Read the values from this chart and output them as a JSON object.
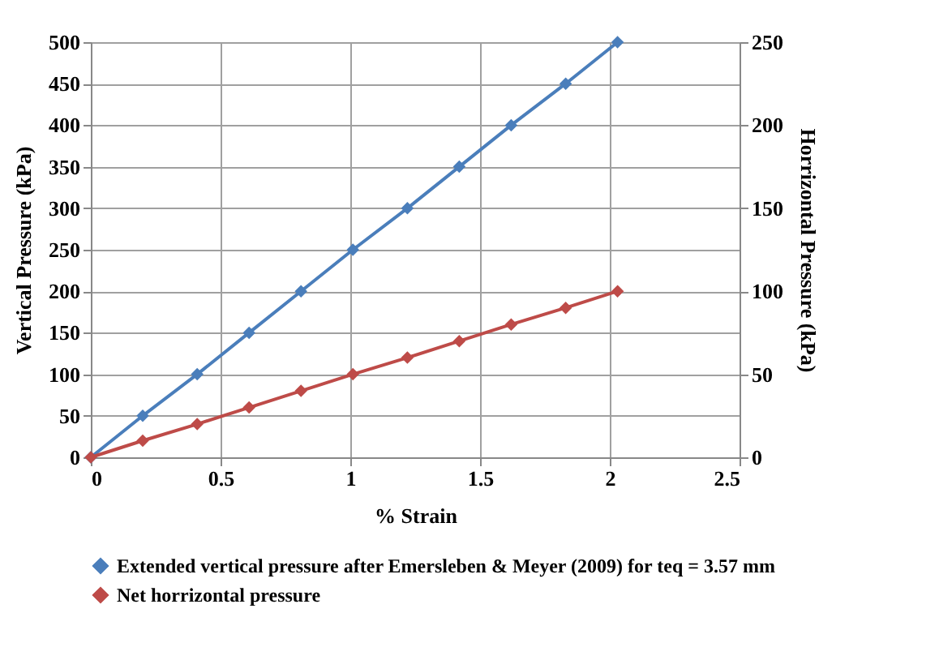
{
  "chart_data": {
    "type": "line",
    "xlabel": "% Strain",
    "ylabel": "Vertical Pressure (kPa)",
    "y2label": "Horrizontal Pressure (kPa)",
    "xlim": [
      0,
      2.5
    ],
    "xticks": [
      0,
      0.5,
      1,
      1.5,
      2,
      2.5
    ],
    "ylim": [
      0,
      500
    ],
    "yticks": [
      0,
      50,
      100,
      150,
      200,
      250,
      300,
      350,
      400,
      450,
      500
    ],
    "y2lim": [
      0,
      250
    ],
    "y2ticks": [
      0,
      50,
      100,
      150,
      200,
      250
    ],
    "grid": true,
    "legend": "bottom",
    "marker": "diamond",
    "line_style": "solid",
    "x": [
      0,
      0.2,
      0.41,
      0.61,
      0.81,
      1.01,
      1.22,
      1.42,
      1.62,
      1.83,
      2.03
    ],
    "series": [
      {
        "name": "Extended vertical pressure after Emersleben & Meyer (2009) for teq = 3.57 mm",
        "color": "#4a7ebb",
        "values": [
          0,
          50,
          100,
          150,
          200,
          250,
          300,
          350,
          400,
          450,
          500
        ]
      },
      {
        "name": "Net horrizontal pressure",
        "color": "#be4b48",
        "axis": "y2",
        "values": [
          0,
          10,
          20,
          30,
          40,
          50,
          60,
          70,
          80,
          90,
          100
        ]
      }
    ]
  }
}
